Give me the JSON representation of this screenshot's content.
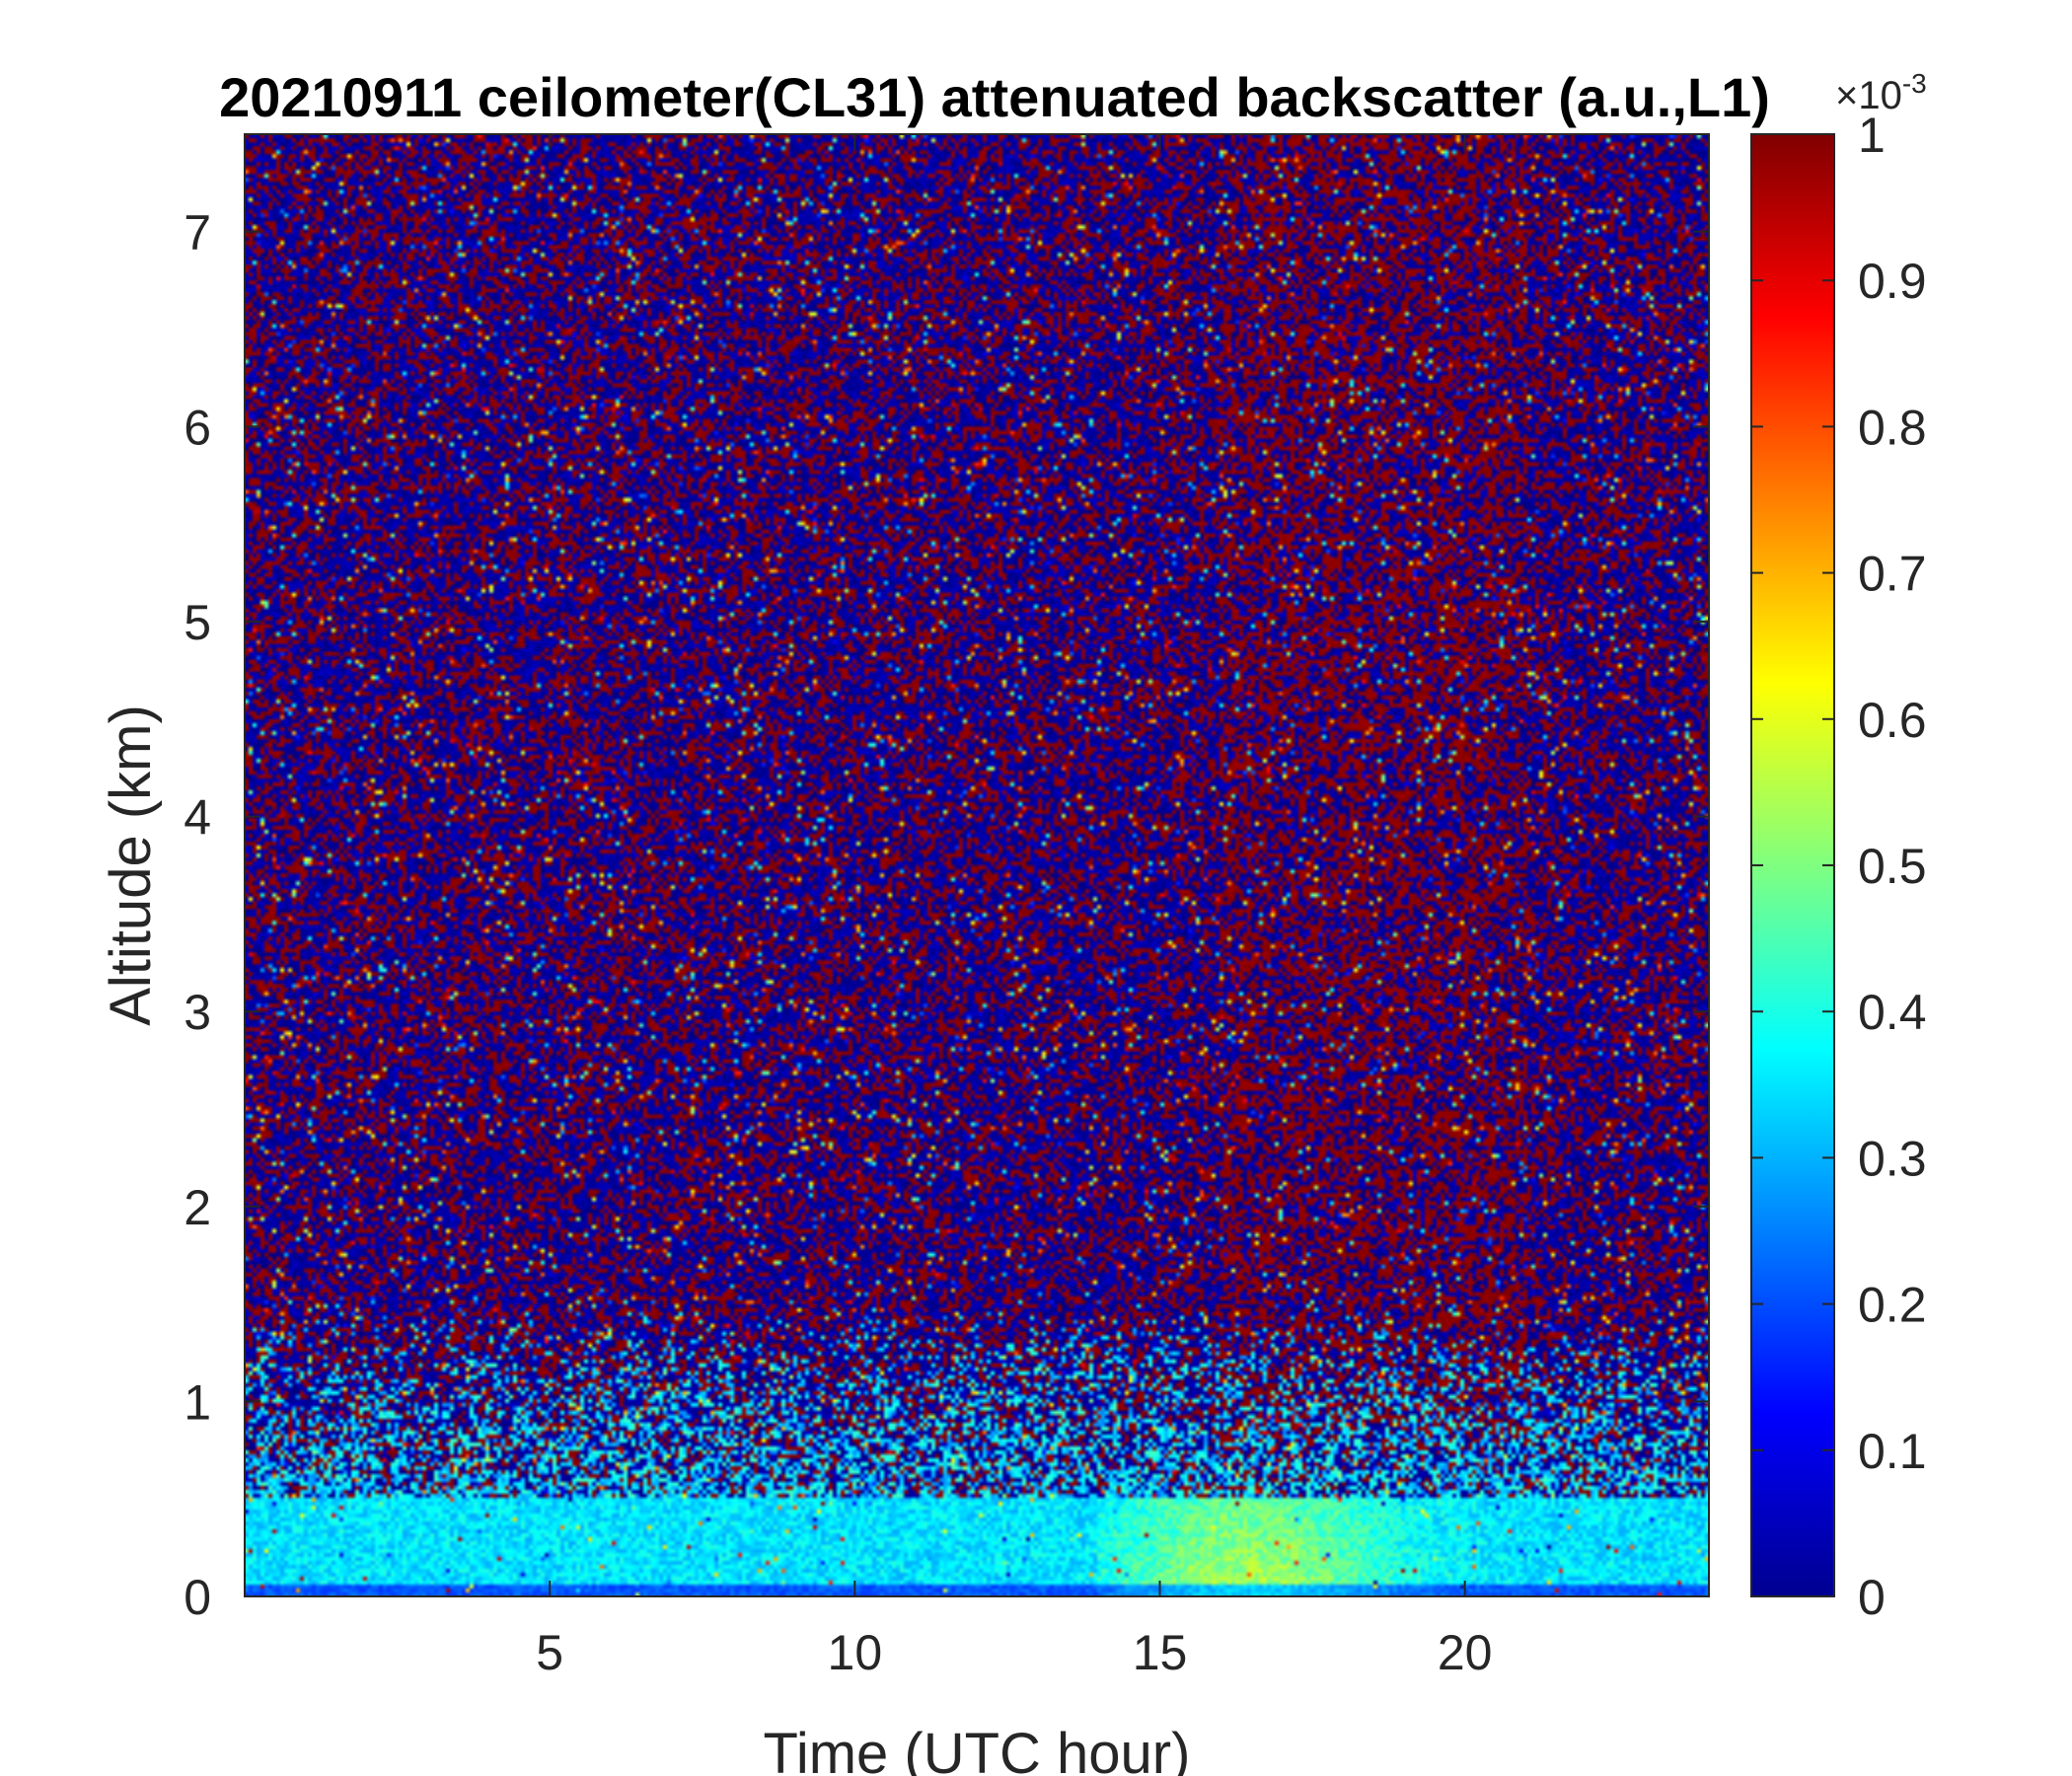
{
  "chart_data": {
    "type": "heatmap",
    "title": "20210911 ceilometer(CL31) attenuated backscatter (a.u.,L1)",
    "xlabel": "Time (UTC hour)",
    "ylabel": "Altitude (km)",
    "xlim": [
      0,
      24
    ],
    "ylim": [
      0,
      7.5
    ],
    "x_ticks": [
      "5",
      "10",
      "15",
      "20"
    ],
    "y_ticks": [
      "0",
      "1",
      "2",
      "3",
      "4",
      "5",
      "6",
      "7"
    ],
    "colorbar": {
      "colormap": "jet",
      "range": [
        0,
        1
      ],
      "ticks": [
        "0",
        "0.1",
        "0.2",
        "0.3",
        "0.4",
        "0.5",
        "0.6",
        "0.7",
        "0.8",
        "0.9",
        "1"
      ],
      "exponent_base": "×10",
      "exponent_power": "-3"
    },
    "description_values": {
      "surface_layer_top_km": 0.5,
      "surface_layer_value": 0.35,
      "enhanced_aerosol_hours": [
        15,
        20
      ],
      "enhanced_aerosol_value": 0.55,
      "noise_dominated_above_km": 1.5
    }
  }
}
